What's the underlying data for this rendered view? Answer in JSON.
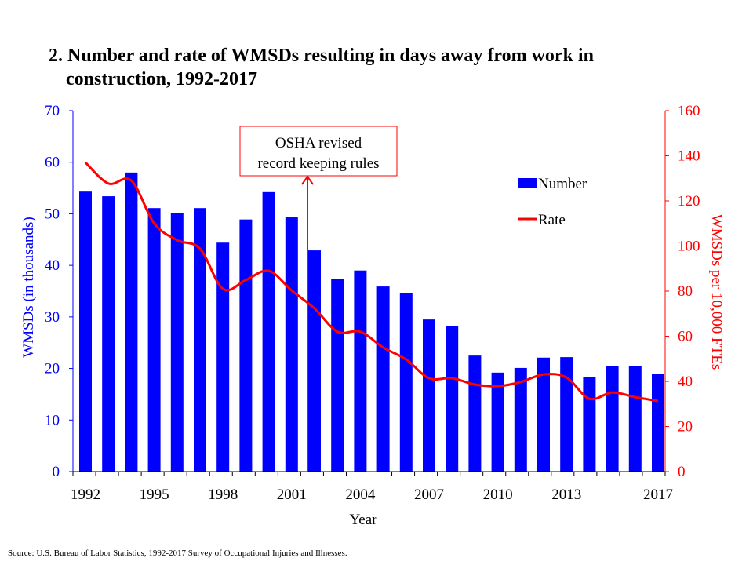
{
  "title_number": "2.",
  "title_line1": "Number and rate of WMSDs resulting in days away from work in",
  "title_line2": "construction, 1992-2017",
  "source": "Source: U.S. Bureau of Labor Statistics, 1992-2017   Survey of Occupational Injuries and Illnesses.",
  "colors": {
    "number": "#0000ff",
    "rate": "#ff0000"
  },
  "chart_data": {
    "type": "bar+line",
    "title": "Number and rate of WMSDs resulting in days away from work in construction, 1992-2017",
    "xlabel": "Year",
    "ylabel": "WMSDs (in thousands)",
    "y2label": "WMSDs per 10,000 FTEs",
    "ylim": [
      0,
      70
    ],
    "y2lim": [
      0,
      160
    ],
    "yticks": [
      0,
      10,
      20,
      30,
      40,
      50,
      60,
      70
    ],
    "y2ticks": [
      0,
      20,
      40,
      60,
      80,
      100,
      120,
      140,
      160
    ],
    "xtick_labels": [
      "1992",
      "1995",
      "1998",
      "2001",
      "2004",
      "2007",
      "2010",
      "2013",
      "2017"
    ],
    "x": [
      1992,
      1993,
      1994,
      1995,
      1996,
      1997,
      1998,
      1999,
      2000,
      2001,
      2002,
      2003,
      2004,
      2005,
      2006,
      2007,
      2008,
      2009,
      2010,
      2011,
      2012,
      2013,
      2014,
      2015,
      2016,
      2017
    ],
    "series": [
      {
        "name": "Number",
        "axis": "left",
        "type": "bar",
        "values": [
          54.3,
          53.4,
          58.0,
          51.1,
          50.2,
          51.1,
          44.4,
          48.9,
          54.2,
          49.3,
          42.9,
          37.3,
          39.0,
          35.9,
          34.6,
          29.5,
          28.3,
          22.5,
          19.2,
          20.1,
          22.1,
          22.2,
          18.4,
          20.5,
          20.5,
          19.0
        ]
      },
      {
        "name": "Rate",
        "axis": "right",
        "type": "line",
        "values": [
          137,
          127.7,
          129,
          110,
          102.6,
          98.8,
          81,
          84.9,
          89,
          80.3,
          72.3,
          62,
          62,
          55,
          49.7,
          41.4,
          41.4,
          38.6,
          37.9,
          39.7,
          43.1,
          41.7,
          32.3,
          35.1,
          33,
          31.3
        ]
      }
    ],
    "legend": "right",
    "annotation": {
      "line1": "OSHA revised",
      "line2": "record keeping rules",
      "year": 2002
    }
  }
}
